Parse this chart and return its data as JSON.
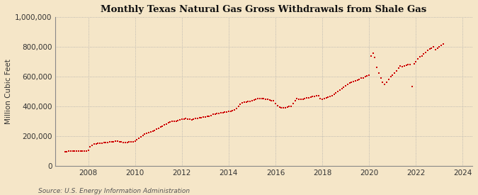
{
  "title": "Monthly Texas Natural Gas Gross Withdrawals from Shale Gas",
  "ylabel": "Million Cubic Feet",
  "source_text": "Source: U.S. Energy Information Administration",
  "background_color": "#f5e6c8",
  "plot_background_color": "#f5e6c8",
  "line_color": "#cc0000",
  "marker": "s",
  "marker_size": 2.2,
  "xlim_left": 2006.6,
  "xlim_right": 2024.4,
  "ylim_bottom": 0,
  "ylim_top": 1000000,
  "xticks": [
    2008,
    2010,
    2012,
    2014,
    2016,
    2018,
    2020,
    2022,
    2024
  ],
  "yticks": [
    0,
    200000,
    400000,
    600000,
    800000,
    1000000
  ],
  "ytick_labels": [
    "0",
    "200,000",
    "400,000",
    "600,000",
    "800,000",
    "1,000,000"
  ],
  "grid_color": "#aaaaaa",
  "grid_style": "dotted",
  "data": {
    "dates": [
      2007.0,
      2007.083,
      2007.167,
      2007.25,
      2007.333,
      2007.417,
      2007.5,
      2007.583,
      2007.667,
      2007.75,
      2007.833,
      2007.917,
      2008.0,
      2008.083,
      2008.167,
      2008.25,
      2008.333,
      2008.417,
      2008.5,
      2008.583,
      2008.667,
      2008.75,
      2008.833,
      2008.917,
      2009.0,
      2009.083,
      2009.167,
      2009.25,
      2009.333,
      2009.417,
      2009.5,
      2009.583,
      2009.667,
      2009.75,
      2009.833,
      2009.917,
      2010.0,
      2010.083,
      2010.167,
      2010.25,
      2010.333,
      2010.417,
      2010.5,
      2010.583,
      2010.667,
      2010.75,
      2010.833,
      2010.917,
      2011.0,
      2011.083,
      2011.167,
      2011.25,
      2011.333,
      2011.417,
      2011.5,
      2011.583,
      2011.667,
      2011.75,
      2011.833,
      2011.917,
      2012.0,
      2012.083,
      2012.167,
      2012.25,
      2012.333,
      2012.417,
      2012.5,
      2012.583,
      2012.667,
      2012.75,
      2012.833,
      2012.917,
      2013.0,
      2013.083,
      2013.167,
      2013.25,
      2013.333,
      2013.417,
      2013.5,
      2013.583,
      2013.667,
      2013.75,
      2013.833,
      2013.917,
      2014.0,
      2014.083,
      2014.167,
      2014.25,
      2014.333,
      2014.417,
      2014.5,
      2014.583,
      2014.667,
      2014.75,
      2014.833,
      2014.917,
      2015.0,
      2015.083,
      2015.167,
      2015.25,
      2015.333,
      2015.417,
      2015.5,
      2015.583,
      2015.667,
      2015.75,
      2015.833,
      2015.917,
      2016.0,
      2016.083,
      2016.167,
      2016.25,
      2016.333,
      2016.417,
      2016.5,
      2016.583,
      2016.667,
      2016.75,
      2016.833,
      2016.917,
      2017.0,
      2017.083,
      2017.167,
      2017.25,
      2017.333,
      2017.417,
      2017.5,
      2017.583,
      2017.667,
      2017.75,
      2017.833,
      2017.917,
      2018.0,
      2018.083,
      2018.167,
      2018.25,
      2018.333,
      2018.417,
      2018.5,
      2018.583,
      2018.667,
      2018.75,
      2018.833,
      2018.917,
      2019.0,
      2019.083,
      2019.167,
      2019.25,
      2019.333,
      2019.417,
      2019.5,
      2019.583,
      2019.667,
      2019.75,
      2019.833,
      2019.917,
      2020.0,
      2020.083,
      2020.167,
      2020.25,
      2020.333,
      2020.417,
      2020.5,
      2020.583,
      2020.667,
      2020.75,
      2020.833,
      2020.917,
      2021.0,
      2021.083,
      2021.167,
      2021.25,
      2021.333,
      2021.417,
      2021.5,
      2021.583,
      2021.667,
      2021.75,
      2021.833,
      2021.917,
      2022.0,
      2022.083,
      2022.167,
      2022.25,
      2022.333,
      2022.417,
      2022.5,
      2022.583,
      2022.667,
      2022.75,
      2022.833,
      2022.917,
      2023.0,
      2023.083,
      2023.167
    ],
    "values": [
      95000,
      97000,
      99000,
      101000,
      100000,
      98000,
      100000,
      102000,
      101000,
      100000,
      99000,
      98000,
      105000,
      130000,
      140000,
      145000,
      148000,
      150000,
      152000,
      153000,
      155000,
      157000,
      158000,
      160000,
      162000,
      163000,
      165000,
      166000,
      162000,
      160000,
      158000,
      157000,
      158000,
      160000,
      162000,
      163000,
      168000,
      175000,
      185000,
      195000,
      205000,
      215000,
      220000,
      225000,
      228000,
      232000,
      238000,
      245000,
      252000,
      260000,
      268000,
      275000,
      282000,
      290000,
      295000,
      298000,
      300000,
      302000,
      305000,
      310000,
      312000,
      315000,
      318000,
      315000,
      312000,
      310000,
      315000,
      318000,
      320000,
      322000,
      325000,
      328000,
      330000,
      332000,
      335000,
      340000,
      345000,
      348000,
      350000,
      352000,
      355000,
      358000,
      360000,
      362000,
      365000,
      368000,
      372000,
      378000,
      385000,
      400000,
      415000,
      425000,
      428000,
      430000,
      432000,
      435000,
      440000,
      442000,
      445000,
      450000,
      452000,
      452000,
      450000,
      448000,
      445000,
      442000,
      440000,
      438000,
      420000,
      405000,
      395000,
      390000,
      390000,
      392000,
      395000,
      398000,
      400000,
      420000,
      440000,
      450000,
      448000,
      445000,
      448000,
      452000,
      455000,
      458000,
      462000,
      465000,
      468000,
      470000,
      472000,
      452000,
      448000,
      450000,
      455000,
      460000,
      465000,
      470000,
      480000,
      490000,
      500000,
      510000,
      520000,
      530000,
      540000,
      548000,
      555000,
      562000,
      568000,
      572000,
      578000,
      582000,
      588000,
      592000,
      598000,
      602000,
      608000,
      740000,
      755000,
      730000,
      660000,
      625000,
      590000,
      560000,
      548000,
      562000,
      580000,
      598000,
      610000,
      625000,
      640000,
      655000,
      670000,
      665000,
      670000,
      675000,
      680000,
      680000,
      535000,
      685000,
      700000,
      720000,
      735000,
      740000,
      750000,
      760000,
      775000,
      785000,
      790000,
      800000,
      780000,
      790000,
      800000,
      810000,
      820000
    ]
  }
}
